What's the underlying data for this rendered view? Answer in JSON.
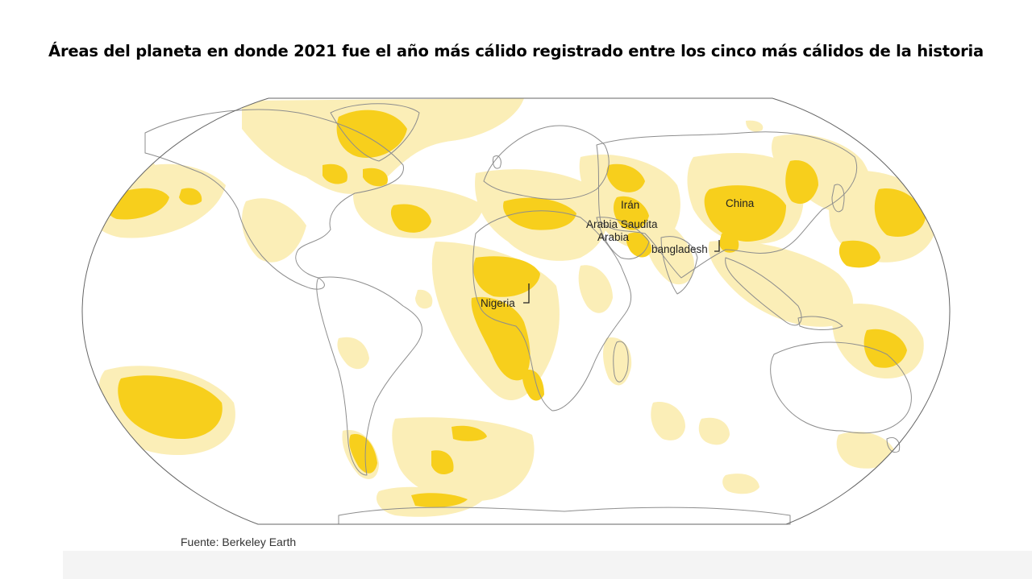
{
  "title": "Áreas del planeta en donde 2021 fue el año más cálido registrado entre los cinco más cálidos de la historia",
  "source": "Fuente: Berkeley Earth",
  "colors": {
    "warmest_record": "#f7cf1c",
    "top_five": "#fbeeb7",
    "land_border": "#8d8d8d",
    "ocean": "#ffffff"
  },
  "labels": {
    "iran": "Irán",
    "saudi_line1": "Arabia Saudita",
    "saudi_line2": "Arabia",
    "china": "China",
    "bangladesh": "bangladesh",
    "nigeria": "Nigeria"
  }
}
